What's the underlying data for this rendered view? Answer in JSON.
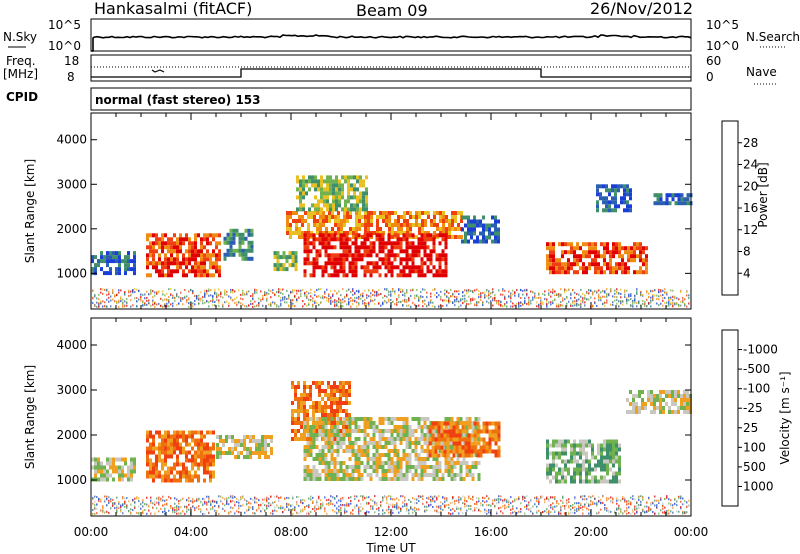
{
  "header": {
    "station": "Hankasalmi (fitACF)",
    "beam": "Beam 09",
    "date": "26/Nov/2012"
  },
  "sky_panel": {
    "left_label": "N.Sky",
    "right_label": "N.Search",
    "left_ticks": [
      "10^5",
      "10^0"
    ],
    "right_ticks": [
      "10^5",
      "10^0"
    ]
  },
  "freq_panel": {
    "left_label_1": "Freq.",
    "left_label_2": "[MHz]",
    "left_ticks": [
      "18",
      "8"
    ],
    "right_ticks": [
      "60",
      "0"
    ],
    "right_label": "Nave"
  },
  "cpid_panel": {
    "label": "CPID",
    "mode_text": "normal (fast stereo) 153"
  },
  "chart_data": [
    {
      "type": "heatmap",
      "title": "",
      "ylabel": "Slant Range [km]",
      "ylim": [
        200,
        4600
      ],
      "y_ticks": [
        1000,
        2000,
        3000,
        4000
      ],
      "xlim_hours": [
        0,
        24
      ],
      "colorbar": {
        "label": "Power [dB]",
        "ticks": [
          "4",
          "8",
          "12",
          "16",
          "20",
          "24",
          "28"
        ],
        "colors": [
          "#1a3fd6",
          "#2b5fb0",
          "#3f8f6a",
          "#6fb24f",
          "#e8c020",
          "#f08a10",
          "#f04010",
          "#e00000"
        ]
      },
      "regions": [
        {
          "t0": 0.0,
          "t1": 1.8,
          "r0": 1050,
          "r1": 1500,
          "level": 1
        },
        {
          "t0": 2.2,
          "t1": 5.1,
          "r0": 1000,
          "r1": 1900,
          "level": 6
        },
        {
          "t0": 5.3,
          "t1": 6.5,
          "r0": 1300,
          "r1": 2000,
          "level": 2
        },
        {
          "t0": 7.3,
          "t1": 8.2,
          "r0": 1100,
          "r1": 1500,
          "level": 3
        },
        {
          "t0": 7.8,
          "t1": 14.8,
          "r0": 1800,
          "r1": 2400,
          "level": 5
        },
        {
          "t0": 8.5,
          "t1": 14.2,
          "r0": 950,
          "r1": 1900,
          "level": 7
        },
        {
          "t0": 8.2,
          "t1": 11.0,
          "r0": 2400,
          "r1": 3200,
          "level": 3
        },
        {
          "t0": 14.8,
          "t1": 16.3,
          "r0": 1700,
          "r1": 2300,
          "level": 1
        },
        {
          "t0": 18.2,
          "t1": 22.2,
          "r0": 1000,
          "r1": 1700,
          "level": 6
        },
        {
          "t0": 20.2,
          "t1": 21.6,
          "r0": 2400,
          "r1": 3000,
          "level": 1
        },
        {
          "t0": 22.5,
          "t1": 24.0,
          "r0": 2550,
          "r1": 2800,
          "level": 1
        }
      ]
    },
    {
      "type": "heatmap",
      "title": "",
      "ylabel": "Slant Range [km]",
      "ylim": [
        200,
        4600
      ],
      "y_ticks": [
        1000,
        2000,
        3000,
        4000
      ],
      "xlim_hours": [
        0,
        24
      ],
      "xlabel": "Time UT",
      "x_ticks": [
        "00:00",
        "04:00",
        "08:00",
        "12:00",
        "16:00",
        "20:00",
        "00:00"
      ],
      "colorbar": {
        "label": "Velocity [m s⁻¹]",
        "ticks": [
          "1000",
          "500",
          "100",
          "25",
          "-25",
          "-100",
          "-500",
          "-1000"
        ],
        "colors": [
          "#1a3fd6",
          "#2b5fb0",
          "#3f8f6a",
          "#6fb24f",
          "#c8c8c0",
          "#f0a020",
          "#f07010",
          "#f04010",
          "#e00000"
        ]
      },
      "regions": [
        {
          "t0": 0.0,
          "t1": 1.8,
          "r0": 1050,
          "r1": 1500,
          "level": 4
        },
        {
          "t0": 2.2,
          "t1": 4.9,
          "r0": 1000,
          "r1": 2100,
          "level": 6
        },
        {
          "t0": 5.0,
          "t1": 7.2,
          "r0": 1500,
          "r1": 2000,
          "level": 4
        },
        {
          "t0": 8.0,
          "t1": 10.3,
          "r0": 1900,
          "r1": 3200,
          "level": 6
        },
        {
          "t0": 8.5,
          "t1": 15.5,
          "r0": 1000,
          "r1": 2400,
          "level": 4
        },
        {
          "t0": 13.5,
          "t1": 16.3,
          "r0": 1500,
          "r1": 2300,
          "level": 6
        },
        {
          "t0": 18.2,
          "t1": 21.2,
          "r0": 1000,
          "r1": 1900,
          "level": 3
        },
        {
          "t0": 21.4,
          "t1": 24.0,
          "r0": 2500,
          "r1": 3000,
          "level": 4
        }
      ]
    }
  ],
  "colors": {
    "axis": "#000000",
    "background": "#ffffff"
  }
}
